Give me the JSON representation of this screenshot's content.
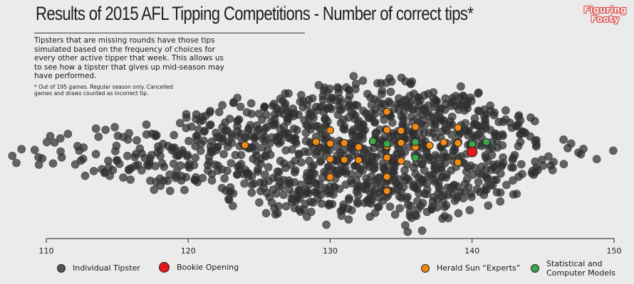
{
  "title": "Results of 2015 AFL Tipping Competitions - Number of correct tips*",
  "logo": [
    "Figuring",
    "Footy"
  ],
  "subtitle": "Tipsters that are missing rounds have those tips simulated based on the frequency of choices for every other active tipper that week. This allows us to see how a tipster that gives up mid-season may have performed.",
  "footnote": "* Out of 195 games. Regular season only. Cancelled games and draws counted as incorrect tip.",
  "legend": {
    "individual": "Individual Tipster",
    "bookie": "Bookie Opening",
    "experts": "Herald Sun “Experts”",
    "models": "Statistical and Computer Models"
  },
  "colors": {
    "background": "#ebebeb",
    "individual": "#2e2e2e",
    "bookie": "#e3191c",
    "experts": "#f28a12",
    "models": "#3ca84a",
    "logo": "#e24c4c"
  },
  "chart_data": {
    "type": "scatter",
    "title": "Results of 2015 AFL Tipping Competitions - Number of correct tips*",
    "xlabel": "",
    "ylabel": "",
    "xlim": [
      110,
      150
    ],
    "x_ticks": [
      110,
      120,
      130,
      140,
      150
    ],
    "grid": false,
    "legend_position": "bottom",
    "series": [
      {
        "name": "Individual Tipster",
        "distribution_of_x": {
          "105": 1,
          "106": 2,
          "107": 2,
          "108": 3,
          "109": 3,
          "110": 4,
          "111": 4,
          "112": 5,
          "113": 6,
          "114": 8,
          "115": 10,
          "116": 12,
          "117": 14,
          "118": 16,
          "119": 18,
          "120": 20,
          "121": 24,
          "122": 28,
          "123": 31,
          "124": 34,
          "125": 38,
          "126": 42,
          "127": 46,
          "128": 50,
          "129": 54,
          "130": 58,
          "131": 60,
          "132": 62,
          "133": 64,
          "134": 66,
          "135": 65,
          "136": 63,
          "137": 60,
          "138": 56,
          "139": 52,
          "140": 46,
          "141": 38,
          "142": 30,
          "143": 22,
          "144": 14,
          "145": 8,
          "146": 5,
          "147": 3,
          "148": 2,
          "149": 1,
          "150": 1
        }
      },
      {
        "name": "Bookie Opening",
        "x": [
          140
        ]
      },
      {
        "name": "Herald Sun “Experts”",
        "x": [
          124,
          129,
          130,
          130,
          130,
          130,
          131,
          131,
          132,
          132,
          133,
          134,
          134,
          134,
          134,
          134,
          134,
          135,
          135,
          135,
          136,
          136,
          136,
          137,
          138,
          139,
          139,
          139
        ]
      },
      {
        "name": "Statistical and Computer Models",
        "x": [
          133,
          134,
          136,
          136,
          140,
          141
        ]
      }
    ]
  }
}
